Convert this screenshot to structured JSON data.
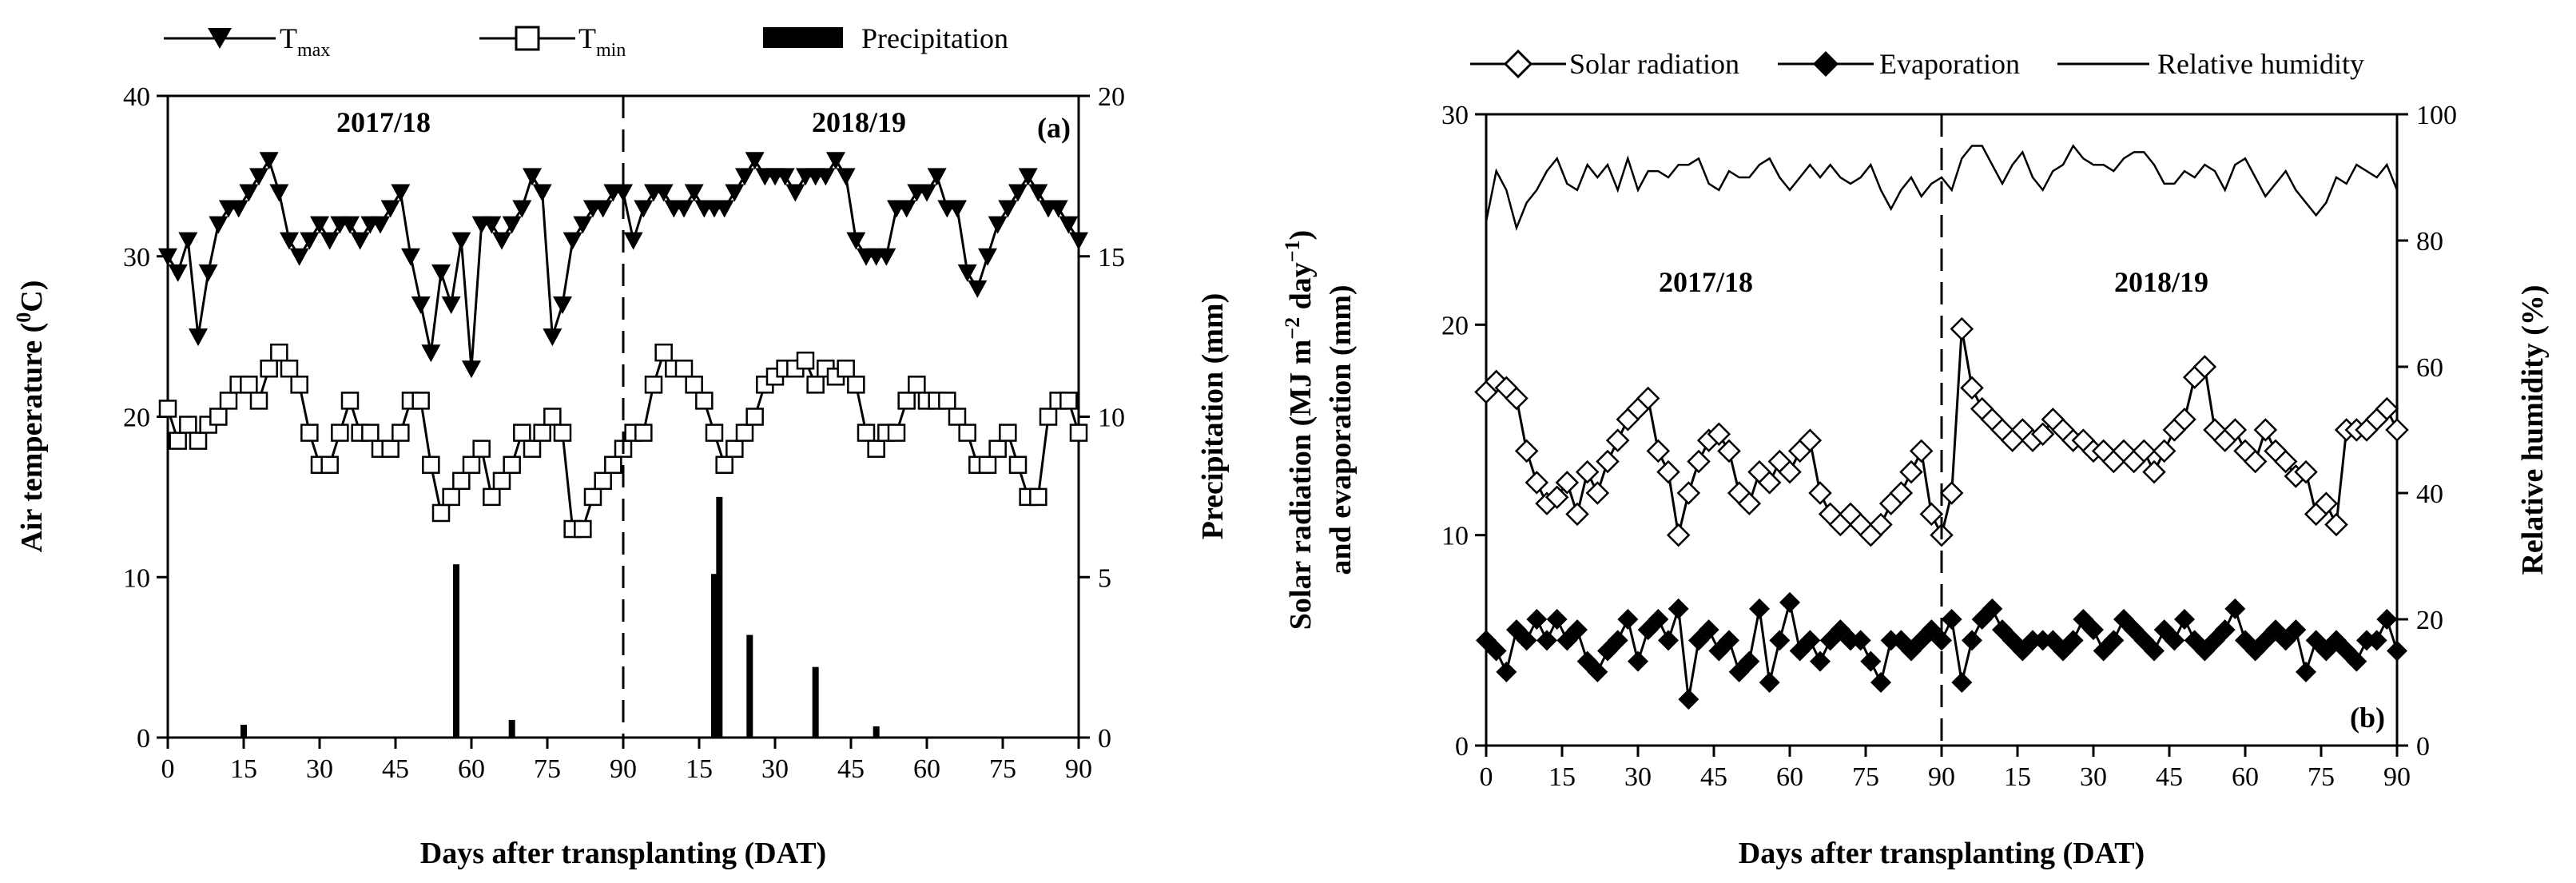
{
  "chart_data": [
    {
      "type": "line",
      "panel_label": "(a)",
      "xlabel": "Days after transplanting (DAT)",
      "ylabel_main": "Air temperature (",
      "ylabel_sup": "0",
      "ylabel_end": "C)",
      "y2label": "Precipitation (mm)",
      "ylim": [
        0,
        40
      ],
      "y2lim": [
        0,
        20
      ],
      "yticks": [
        "0",
        "10",
        "20",
        "30",
        "40"
      ],
      "y2ticks": [
        "0",
        "5",
        "10",
        "15",
        "20"
      ],
      "xticks": [
        "0",
        "15",
        "30",
        "45",
        "60",
        "75",
        "90",
        "15",
        "30",
        "45",
        "60",
        "75",
        "90"
      ],
      "seasons": [
        "2017/18",
        "2018/19"
      ],
      "legend": {
        "tmax_main": "T",
        "tmax_sub": "max",
        "tmin_main": "T",
        "tmin_sub": "min",
        "precip": "Precipitation"
      },
      "x": [
        0,
        2,
        4,
        6,
        8,
        10,
        12,
        14,
        16,
        18,
        20,
        22,
        24,
        26,
        28,
        30,
        32,
        34,
        36,
        38,
        40,
        42,
        44,
        46,
        48,
        50,
        52,
        54,
        56,
        58,
        60,
        62,
        64,
        66,
        68,
        70,
        72,
        74,
        76,
        78,
        80,
        82,
        84,
        86,
        88,
        90,
        92,
        94,
        96,
        98,
        100,
        102,
        104,
        106,
        108,
        110,
        112,
        114,
        116,
        118,
        120,
        122,
        124,
        126,
        128,
        130,
        132,
        134,
        136,
        138,
        140,
        142,
        144,
        146,
        148,
        150,
        152,
        154,
        156,
        158,
        160,
        162,
        164,
        166,
        168,
        170,
        172,
        174,
        176,
        178,
        180
      ],
      "series": [
        {
          "name": "Tmax",
          "values": [
            30,
            29,
            31,
            25,
            29,
            32,
            33,
            33,
            34,
            35,
            36,
            34,
            31,
            30,
            31,
            32,
            31,
            32,
            32,
            31,
            32,
            32,
            33,
            34,
            30,
            27,
            24,
            29,
            27,
            31,
            23,
            32,
            32,
            31,
            32,
            33,
            35,
            34,
            25,
            27,
            31,
            32,
            33,
            33,
            34,
            34,
            31,
            33,
            34,
            34,
            33,
            33,
            34,
            33,
            33,
            33,
            34,
            35,
            36,
            35,
            35,
            35,
            34,
            35,
            35,
            35,
            36,
            35,
            31,
            30,
            30,
            30,
            33,
            33,
            34,
            34,
            35,
            33,
            33,
            29,
            28,
            30,
            32,
            33,
            34,
            35,
            34,
            33,
            33,
            32,
            31
          ]
        },
        {
          "name": "Tmin",
          "values": [
            20.5,
            18.5,
            19.5,
            18.5,
            19.5,
            20,
            21,
            22,
            22,
            21,
            23,
            24,
            23,
            22,
            19,
            17,
            17,
            19,
            21,
            19,
            19,
            18,
            18,
            19,
            21,
            21,
            17,
            14,
            15,
            16,
            17,
            18,
            15,
            16,
            17,
            19,
            18,
            19,
            20,
            19,
            13,
            13,
            15,
            16,
            17,
            18,
            19,
            19,
            22,
            24,
            23,
            23,
            22,
            21,
            19,
            17,
            18,
            19,
            20,
            22,
            22.5,
            23,
            23,
            23.5,
            22,
            23,
            22.5,
            23,
            22,
            19,
            18,
            19,
            19,
            21,
            22,
            21,
            21,
            21,
            20,
            19,
            17,
            17,
            18,
            19,
            17,
            15,
            15,
            20,
            21,
            21,
            19
          ]
        }
      ],
      "precipitation": {
        "x": [
          15,
          57,
          68,
          108,
          109,
          115,
          128,
          140
        ],
        "values": [
          0.4,
          5.4,
          0.55,
          5.1,
          7.5,
          3.2,
          2.2,
          0.35
        ]
      }
    },
    {
      "type": "line",
      "panel_label": "(b)",
      "xlabel": "Days after transplanting (DAT)",
      "ylabel_line1_pre": "Solar radiation (MJ m",
      "ylabel_line1_sup1": "−2",
      "ylabel_line1_mid": " day",
      "ylabel_line1_sup2": "−1",
      "ylabel_line1_end": ")",
      "ylabel_line2": "and evaporation (mm)",
      "y2label": "Relative humidity (%)",
      "ylim": [
        0,
        30
      ],
      "y2lim": [
        0,
        100
      ],
      "yticks": [
        "0",
        "10",
        "20",
        "30"
      ],
      "y2ticks": [
        "0",
        "20",
        "40",
        "60",
        "80",
        "100"
      ],
      "xticks": [
        "0",
        "15",
        "30",
        "45",
        "60",
        "75",
        "90",
        "15",
        "30",
        "45",
        "60",
        "75",
        "90"
      ],
      "seasons": [
        "2017/18",
        "2018/19"
      ],
      "legend": {
        "solar": "Solar radiation",
        "evap": "Evaporation",
        "rh": "Relative humidity"
      },
      "x": [
        0,
        2,
        4,
        6,
        8,
        10,
        12,
        14,
        16,
        18,
        20,
        22,
        24,
        26,
        28,
        30,
        32,
        34,
        36,
        38,
        40,
        42,
        44,
        46,
        48,
        50,
        52,
        54,
        56,
        58,
        60,
        62,
        64,
        66,
        68,
        70,
        72,
        74,
        76,
        78,
        80,
        82,
        84,
        86,
        88,
        90,
        92,
        94,
        96,
        98,
        100,
        102,
        104,
        106,
        108,
        110,
        112,
        114,
        116,
        118,
        120,
        122,
        124,
        126,
        128,
        130,
        132,
        134,
        136,
        138,
        140,
        142,
        144,
        146,
        148,
        150,
        152,
        154,
        156,
        158,
        160,
        162,
        164,
        166,
        168,
        170,
        172,
        174,
        176,
        178,
        180
      ],
      "series": [
        {
          "name": "Solar radiation",
          "values": [
            16.8,
            17.3,
            17,
            16.5,
            14,
            12.5,
            11.5,
            11.8,
            12.5,
            11,
            13,
            12,
            13.5,
            14.5,
            15.5,
            16,
            16.5,
            14,
            13,
            10,
            12,
            13.5,
            14.5,
            14.8,
            14,
            12,
            11.5,
            13,
            12.5,
            13.5,
            13,
            14,
            14.5,
            12,
            11,
            10.5,
            11,
            10.5,
            10,
            10.5,
            11.5,
            12,
            13,
            14,
            11,
            10,
            12,
            19.8,
            17,
            16,
            15.5,
            15,
            14.5,
            15,
            14.5,
            14.8,
            15.5,
            15,
            14.5,
            14.5,
            14,
            14,
            13.5,
            14,
            13.5,
            14,
            13,
            14,
            15,
            15.5,
            17.5,
            18,
            15,
            14.5,
            15,
            14,
            13.5,
            15,
            14,
            13.5,
            12.8,
            13,
            11,
            11.5,
            10.5,
            15,
            15,
            15,
            15.5,
            16,
            15
          ]
        },
        {
          "name": "Evaporation",
          "values": [
            5,
            4.5,
            3.5,
            5.5,
            5,
            6,
            5,
            6,
            5,
            5.5,
            4,
            3.5,
            4.5,
            5,
            6,
            4,
            5.5,
            6,
            5,
            6.5,
            2.2,
            5,
            5.5,
            4.5,
            5,
            3.5,
            4,
            6.5,
            3,
            5,
            6.8,
            4.5,
            5,
            4,
            5,
            5.5,
            5,
            5,
            4,
            3,
            5,
            5,
            4.5,
            5,
            5.5,
            5,
            6,
            3,
            5,
            6,
            6.5,
            5.5,
            5,
            4.5,
            5,
            5,
            5,
            4.5,
            5,
            6,
            5.5,
            4.5,
            5,
            6,
            5.5,
            5,
            4.5,
            5.5,
            5,
            6,
            5,
            4.5,
            5,
            5.5,
            6.5,
            5,
            4.5,
            5,
            5.5,
            5,
            5.5,
            3.5,
            5,
            4.5,
            5,
            4.5,
            4,
            5,
            5,
            6,
            4.5
          ]
        },
        {
          "name": "Relative humidity",
          "values": [
            83,
            91,
            88,
            82,
            86,
            88,
            91,
            93,
            89,
            88,
            92,
            90,
            92,
            88,
            93,
            88,
            91,
            91,
            90,
            92,
            92,
            93,
            89,
            88,
            91,
            90,
            90,
            92,
            93,
            90,
            88,
            90,
            92,
            90,
            92,
            90,
            89,
            90,
            92,
            88,
            85,
            88,
            90,
            87,
            89,
            90,
            88,
            93,
            95,
            95,
            92,
            89,
            92,
            94,
            90,
            88,
            91,
            92,
            95,
            93,
            92,
            92,
            91,
            93,
            94,
            94,
            92,
            89,
            89,
            91,
            90,
            92,
            91,
            88,
            92,
            93,
            90,
            87,
            89,
            91,
            88,
            86,
            84,
            86,
            90,
            89,
            92,
            91,
            90,
            92,
            88
          ]
        }
      ]
    }
  ]
}
